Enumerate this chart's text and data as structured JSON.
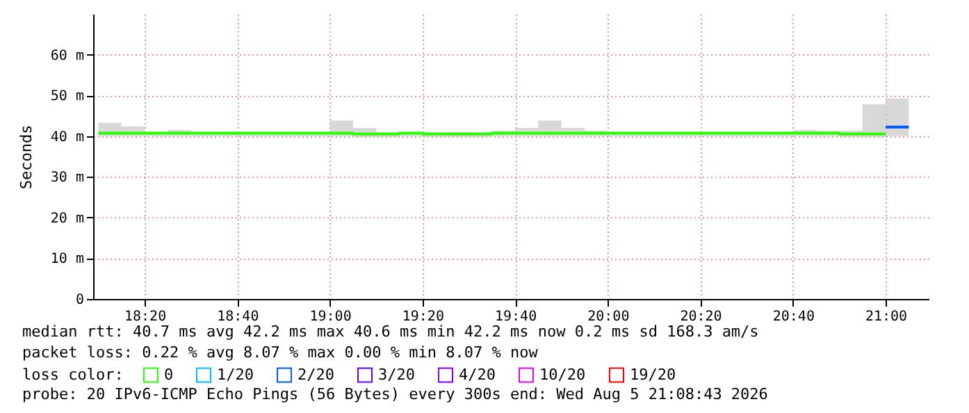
{
  "chart_data": {
    "type": "step",
    "ylabel": "Seconds",
    "xlim": [
      18.148,
      21.155
    ],
    "xticks": [
      {
        "value": 18.3333,
        "label": "18:20"
      },
      {
        "value": 18.6667,
        "label": "18:40"
      },
      {
        "value": 19.0,
        "label": "19:00"
      },
      {
        "value": 19.3333,
        "label": "19:20"
      },
      {
        "value": 19.6667,
        "label": "19:40"
      },
      {
        "value": 20.0,
        "label": "20:00"
      },
      {
        "value": 20.3333,
        "label": "20:20"
      },
      {
        "value": 20.6667,
        "label": "20:40"
      },
      {
        "value": 21.0,
        "label": "21:00"
      }
    ],
    "ylim": [
      0,
      70
    ],
    "yticks": [
      0,
      {
        "value": 10,
        "label": "10 m"
      },
      {
        "value": 20,
        "label": "20 m"
      },
      {
        "value": 30,
        "label": "30 m"
      },
      {
        "value": 40,
        "label": "40 m"
      },
      {
        "value": 50,
        "label": "50 m"
      },
      {
        "value": 60,
        "label": "60 m"
      }
    ],
    "grid": true,
    "legend": "bottom",
    "legend_title": "loss color:",
    "series": [
      {
        "name": "0",
        "color": "#26ff00",
        "x": [
          18.1667,
          18.25,
          18.3333,
          18.4167,
          18.5,
          18.5833,
          18.6667,
          18.75,
          18.8333,
          18.9167,
          19.0,
          19.0833,
          19.1667,
          19.25,
          19.3333,
          19.4167,
          19.5,
          19.5833,
          19.6667,
          19.75,
          19.8333,
          19.9167,
          20.0,
          20.0833,
          20.1667,
          20.25,
          20.3333,
          20.4167,
          20.5,
          20.5833,
          20.6667,
          20.75,
          20.8333,
          20.9167,
          21.0
        ],
        "values": [
          40.7,
          40.7,
          40.7,
          40.7,
          40.7,
          40.7,
          40.7,
          40.7,
          40.7,
          40.7,
          40.7,
          40.5,
          40.5,
          40.7,
          40.5,
          40.5,
          40.5,
          40.7,
          40.7,
          40.7,
          40.7,
          40.7,
          40.7,
          40.7,
          40.7,
          40.7,
          40.7,
          40.7,
          40.7,
          40.7,
          40.7,
          40.7,
          40.5,
          40.5,
          40.5
        ],
        "lower": [
          40.0,
          40.0,
          40.0,
          40.0,
          40.0,
          40.0,
          40.0,
          40.0,
          40.0,
          40.0,
          40.0,
          39.8,
          39.8,
          40.0,
          39.8,
          39.8,
          39.8,
          40.0,
          40.0,
          40.0,
          40.0,
          40.0,
          40.0,
          40.0,
          40.0,
          40.0,
          40.0,
          40.0,
          40.0,
          40.0,
          40.0,
          40.0,
          39.8,
          39.8,
          39.8
        ],
        "upper": [
          43.3,
          42.4,
          41.0,
          41.5,
          41.0,
          41.0,
          41.0,
          41.0,
          41.0,
          41.0,
          43.8,
          42.0,
          41.0,
          41.0,
          41.0,
          41.0,
          41.0,
          41.3,
          42.0,
          43.8,
          42.0,
          41.3,
          41.0,
          41.0,
          41.0,
          41.0,
          41.0,
          41.0,
          41.0,
          41.0,
          41.5,
          41.3,
          41.3,
          47.8,
          47.8
        ]
      },
      {
        "name": "1/20",
        "color": "#00b8ff"
      },
      {
        "name": "2/20",
        "color": "#0059ff",
        "x": [
          21.0,
          21.0833
        ],
        "values": [
          42.2,
          42.2
        ],
        "lower": [
          40.0,
          40.0
        ],
        "upper": [
          49.2,
          49.2
        ]
      },
      {
        "name": "3/20",
        "color": "#5e00ff"
      },
      {
        "name": "4/20",
        "color": "#7e00ff"
      },
      {
        "name": "10/20",
        "color": "#dd00ff"
      },
      {
        "name": "19/20",
        "color": "#ff0000"
      }
    ],
    "annotations": [
      "median rtt:  40.7 ms avg  42.2 ms max  40.6 ms min  42.2 ms now  0.2 ms sd  168.3   am/s",
      "packet loss: 0.22 % avg  8.07 % max  0.00 % min  8.07 % now",
      "probe:       20 IPv6-ICMP Echo Pings (56 Bytes) every 300s       end: Wed Aug  5 21:08:43 2026"
    ]
  }
}
